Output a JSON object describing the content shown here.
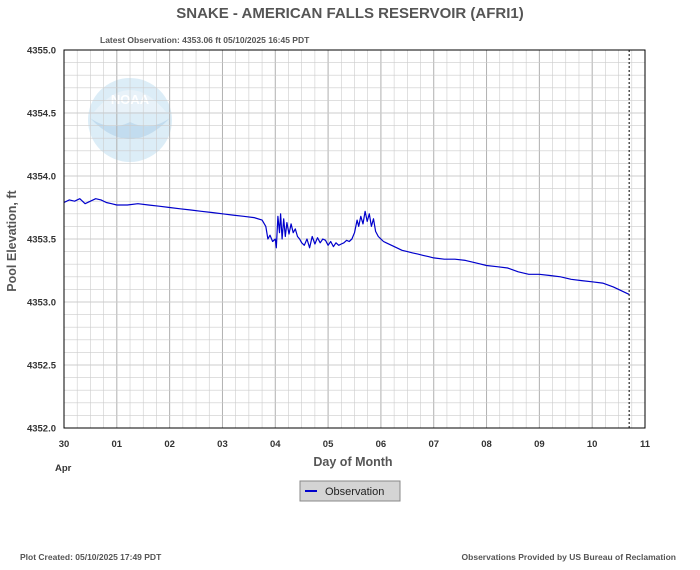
{
  "header": {
    "title": "SNAKE - AMERICAN FALLS RESERVOIR  (AFRI1)",
    "latest_observation": "Latest Observation: 4353.06 ft 05/10/2025 16:45 PDT"
  },
  "footer": {
    "plot_created": "Plot Created: 05/10/2025 17:49 PDT",
    "source": "Observations Provided by US Bureau of Reclamation"
  },
  "watermark": {
    "text": "NOAA",
    "color": "#c6dff0"
  },
  "colors": {
    "series": "#0000cc",
    "grid": "#cccccc",
    "frame": "#000000"
  },
  "chart_data": {
    "type": "line",
    "title": "SNAKE - AMERICAN FALLS RESERVOIR  (AFRI1)",
    "xlabel": "Day of Month",
    "ylabel": "Pool Elevation, ft",
    "x_tick_labels": [
      "30",
      "01",
      "02",
      "03",
      "04",
      "05",
      "06",
      "07",
      "08",
      "09",
      "10",
      "11"
    ],
    "x_sub_label": "Apr",
    "x_ticks_day": [
      30,
      31,
      32,
      33,
      34,
      35,
      36,
      37,
      38,
      39,
      40,
      41
    ],
    "x_range_day": [
      30,
      41
    ],
    "ylim": [
      4352.0,
      4355.0
    ],
    "y_ticks": [
      "4352.0",
      "4352.5",
      "4353.0",
      "4353.5",
      "4354.0",
      "4354.5",
      "4355.0"
    ],
    "grid": true,
    "minor_x_grid_per_day": 4,
    "latest_marker_day": 40.7,
    "legend": {
      "entries": [
        "Observation"
      ],
      "placement": "bottom-center"
    },
    "series": [
      {
        "name": "Observation",
        "x_day": [
          30.0,
          30.1,
          30.2,
          30.3,
          30.4,
          30.5,
          30.6,
          30.7,
          30.8,
          30.9,
          31.0,
          31.2,
          31.4,
          31.6,
          31.8,
          32.0,
          32.2,
          32.4,
          32.6,
          32.8,
          33.0,
          33.2,
          33.4,
          33.6,
          33.75,
          33.82,
          33.86,
          33.9,
          33.95,
          34.0,
          34.02,
          34.05,
          34.08,
          34.1,
          34.13,
          34.16,
          34.19,
          34.22,
          34.26,
          34.3,
          34.34,
          34.38,
          34.42,
          34.46,
          34.5,
          34.55,
          34.6,
          34.65,
          34.7,
          34.75,
          34.8,
          34.85,
          34.9,
          34.95,
          35.0,
          35.05,
          35.1,
          35.15,
          35.2,
          35.25,
          35.3,
          35.35,
          35.4,
          35.45,
          35.5,
          35.55,
          35.58,
          35.62,
          35.66,
          35.7,
          35.74,
          35.78,
          35.82,
          35.86,
          35.9,
          35.95,
          36.0,
          36.05,
          36.1,
          36.2,
          36.3,
          36.4,
          36.5,
          36.6,
          36.7,
          36.8,
          36.9,
          37.0,
          37.2,
          37.4,
          37.6,
          37.8,
          38.0,
          38.2,
          38.4,
          38.6,
          38.8,
          39.0,
          39.2,
          39.4,
          39.6,
          39.8,
          40.0,
          40.2,
          40.4,
          40.5,
          40.6,
          40.7
        ],
        "values": [
          4353.79,
          4353.81,
          4353.8,
          4353.82,
          4353.78,
          4353.8,
          4353.82,
          4353.81,
          4353.79,
          4353.78,
          4353.77,
          4353.77,
          4353.78,
          4353.77,
          4353.76,
          4353.75,
          4353.74,
          4353.73,
          4353.72,
          4353.71,
          4353.7,
          4353.69,
          4353.68,
          4353.67,
          4353.65,
          4353.6,
          4353.5,
          4353.53,
          4353.48,
          4353.5,
          4353.43,
          4353.68,
          4353.55,
          4353.7,
          4353.5,
          4353.66,
          4353.52,
          4353.63,
          4353.54,
          4353.62,
          4353.55,
          4353.58,
          4353.52,
          4353.5,
          4353.47,
          4353.45,
          4353.5,
          4353.43,
          4353.52,
          4353.46,
          4353.51,
          4353.47,
          4353.5,
          4353.49,
          4353.45,
          4353.48,
          4353.44,
          4353.47,
          4353.45,
          4353.46,
          4353.47,
          4353.49,
          4353.48,
          4353.5,
          4353.55,
          4353.65,
          4353.6,
          4353.68,
          4353.62,
          4353.72,
          4353.64,
          4353.7,
          4353.6,
          4353.66,
          4353.56,
          4353.52,
          4353.5,
          4353.48,
          4353.47,
          4353.45,
          4353.43,
          4353.41,
          4353.4,
          4353.39,
          4353.38,
          4353.37,
          4353.36,
          4353.35,
          4353.34,
          4353.34,
          4353.33,
          4353.31,
          4353.29,
          4353.28,
          4353.27,
          4353.24,
          4353.22,
          4353.22,
          4353.21,
          4353.2,
          4353.18,
          4353.17,
          4353.16,
          4353.15,
          4353.12,
          4353.1,
          4353.08,
          4353.06
        ]
      }
    ]
  }
}
